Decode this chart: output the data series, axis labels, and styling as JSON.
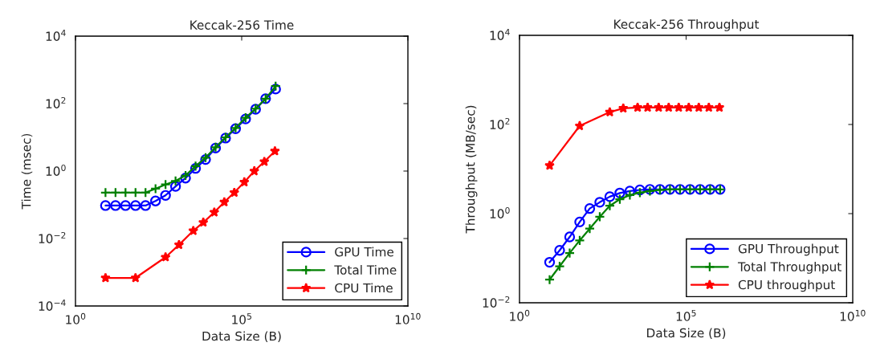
{
  "chart_data": [
    {
      "type": "line",
      "title": "Keccak-256 Time",
      "xlabel": "Data Size (B)",
      "ylabel": "Time (msec)",
      "log": "xy",
      "grid": false,
      "legend": "bottom right",
      "xlim": [
        1,
        10000000000
      ],
      "xticks": [
        {
          "value": 1,
          "label": "10$^{0}$"
        },
        {
          "value": 100000,
          "label": "10$^{5}$"
        },
        {
          "value": 10000000000,
          "label": "10$^{10}$"
        }
      ],
      "ylim": [
        0.0001,
        10000
      ],
      "yticks": [
        {
          "value": 0.0001,
          "label": "10$^{−4}$"
        },
        {
          "value": 0.01,
          "label": "10$^{−2}$"
        },
        {
          "value": 1,
          "label": "10$^{0}$"
        },
        {
          "value": 100,
          "label": "10$^{2}$"
        },
        {
          "value": 10000,
          "label": "10$^{4}$"
        }
      ],
      "series": [
        {
          "name": "GPU Time",
          "color": "#0000ff",
          "marker": "circle",
          "x": [
            8,
            16,
            32,
            64,
            128,
            256,
            512,
            1024,
            2048,
            4096,
            8192,
            16384,
            32768,
            65536,
            131072,
            262144,
            524288,
            1048576
          ],
          "values": [
            0.095,
            0.095,
            0.095,
            0.095,
            0.095,
            0.13,
            0.19,
            0.35,
            0.62,
            1.2,
            2.2,
            4.8,
            9.5,
            18,
            35,
            68,
            140,
            270
          ]
        },
        {
          "name": "Total Time",
          "color": "#008000",
          "marker": "cross",
          "x": [
            8,
            16,
            32,
            64,
            128,
            256,
            512,
            1024,
            2048,
            4096,
            8192,
            16384,
            32768,
            65536,
            131072,
            262144,
            524288,
            1048576
          ],
          "values": [
            0.23,
            0.23,
            0.23,
            0.23,
            0.23,
            0.3,
            0.4,
            0.51,
            0.74,
            1.4,
            2.5,
            5.1,
            10,
            19,
            38,
            71,
            140,
            330
          ]
        },
        {
          "name": "CPU Time",
          "color": "#ff0000",
          "marker": "star",
          "x": [
            8,
            64,
            512,
            1300,
            3500,
            7000,
            15000,
            30000,
            60000,
            120000,
            240000,
            480000,
            1000000
          ],
          "values": [
            0.00068,
            0.00068,
            0.0028,
            0.0065,
            0.017,
            0.03,
            0.06,
            0.12,
            0.23,
            0.47,
            1.0,
            1.9,
            3.9
          ]
        }
      ]
    },
    {
      "type": "line",
      "title": "Keccak-256 Throughput",
      "xlabel": "Data Size (B)",
      "ylabel": "Throughput (MB/sec)",
      "log": "xy",
      "grid": false,
      "legend": "bottom right",
      "xlim": [
        1,
        10000000000
      ],
      "xticks": [
        {
          "value": 1,
          "label": "10$^{0}$"
        },
        {
          "value": 100000,
          "label": "10$^{5}$"
        },
        {
          "value": 10000000000,
          "label": "10$^{10}$"
        }
      ],
      "ylim": [
        0.01,
        10000
      ],
      "yticks": [
        {
          "value": 0.01,
          "label": "10$^{−2}$"
        },
        {
          "value": 1,
          "label": "10$^{0}$"
        },
        {
          "value": 100,
          "label": "10$^{2}$"
        },
        {
          "value": 10000,
          "label": "10$^{4}$"
        }
      ],
      "series": [
        {
          "name": "GPU Throughput",
          "color": "#0000ff",
          "marker": "circle",
          "x": [
            8,
            16,
            32,
            64,
            128,
            256,
            512,
            1024,
            2048,
            4096,
            8192,
            16384,
            32768,
            65536,
            131072,
            262144,
            524288,
            1048576
          ],
          "values": [
            0.081,
            0.15,
            0.3,
            0.65,
            1.3,
            1.8,
            2.4,
            2.9,
            3.2,
            3.4,
            3.5,
            3.5,
            3.5,
            3.5,
            3.5,
            3.5,
            3.5,
            3.5
          ]
        },
        {
          "name": "Total Throughput",
          "color": "#008000",
          "marker": "cross",
          "x": [
            8,
            16,
            32,
            64,
            128,
            256,
            512,
            1024,
            2048,
            4096,
            8192,
            16384,
            32768,
            65536,
            131072,
            262144,
            524288,
            1048576
          ],
          "values": [
            0.033,
            0.066,
            0.13,
            0.25,
            0.46,
            0.85,
            1.5,
            2.1,
            2.6,
            2.95,
            3.2,
            3.4,
            3.5,
            3.5,
            3.5,
            3.5,
            3.5,
            3.5
          ]
        },
        {
          "name": "CPU throughput",
          "color": "#ff0000",
          "marker": "star",
          "x": [
            8,
            64,
            512,
            1300,
            3500,
            7000,
            15000,
            30000,
            60000,
            120000,
            240000,
            480000,
            1000000
          ],
          "values": [
            12,
            93,
            190,
            230,
            240,
            240,
            240,
            240,
            240,
            240,
            240,
            240,
            240
          ]
        }
      ]
    }
  ]
}
